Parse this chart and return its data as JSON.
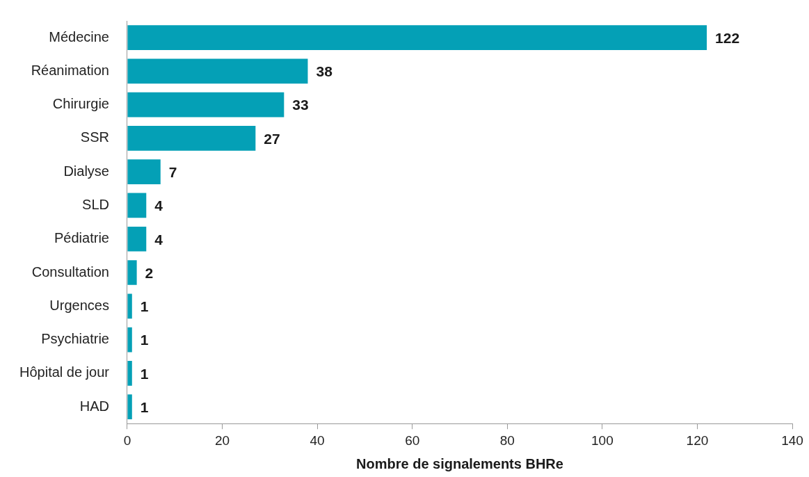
{
  "chart_data": {
    "type": "bar",
    "orientation": "horizontal",
    "xlabel": "Nombre de signalements BHRe",
    "categories": [
      "Médecine",
      "Réanimation",
      "Chirurgie",
      "SSR",
      "Dialyse",
      "SLD",
      "Pédiatrie",
      "Consultation",
      "Urgences",
      "Psychiatrie",
      "Hôpital de jour",
      "HAD"
    ],
    "values": [
      122,
      38,
      33,
      27,
      7,
      4,
      4,
      2,
      1,
      1,
      1,
      1
    ],
    "color": "#04a0b6",
    "xlim": [
      0,
      140
    ],
    "xticks": [
      0,
      20,
      40,
      60,
      80,
      100,
      120,
      140
    ],
    "grid": false,
    "legend": false,
    "data_labels": true
  }
}
